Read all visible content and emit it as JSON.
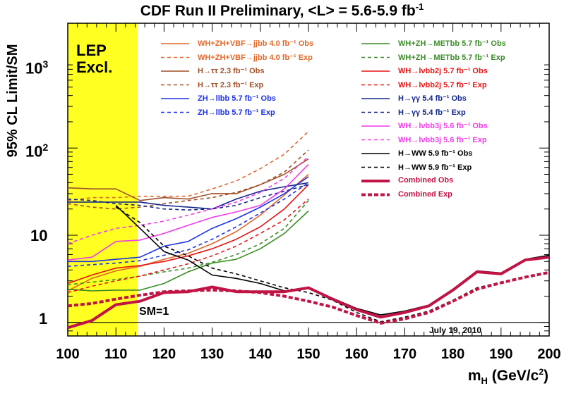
{
  "colors": {
    "lep_band": "#ffff22",
    "jjbb": "#e0682a",
    "tautau": "#a0502a",
    "zh": "#1e32e6",
    "metbb": "#3c8c28",
    "wh": "#e81414",
    "gg": "#14288c",
    "wh3j": "#f03ce6",
    "hww": "#000000",
    "comb": "#c01445"
  },
  "labels": {
    "lep_line1": "LEP",
    "lep_line2": "Excl.",
    "sm": "SM=1",
    "date": "July 19, 2010"
  },
  "chart_data": {
    "type": "line",
    "title": "CDF Run II Preliminary, <L> = 5.6-5.9 fb⁻¹",
    "xlabel": "m_H (GeV/c²)",
    "ylabel": "95% CL Limit/SM",
    "xlim": [
      100,
      200
    ],
    "ylim": [
      0.7,
      2700
    ],
    "log_y": true,
    "x_ticks": [
      "100",
      "110",
      "120",
      "130",
      "140",
      "150",
      "160",
      "170",
      "180",
      "190",
      "200"
    ],
    "y_ticks": [
      {
        "label": "1",
        "value": 1
      },
      {
        "label": "10",
        "value": 10
      },
      {
        "label": "10²",
        "value": 100
      },
      {
        "label": "10³",
        "value": 1000
      }
    ],
    "lep_excluded_below": 114.4,
    "sm_line": 1,
    "series": [
      {
        "name": "WH+ZH+VBF→jjbb 4.0 fb⁻¹ Obs",
        "key": "jjbb",
        "dashed": false,
        "x": [
          100,
          105,
          110,
          115,
          120,
          125,
          130,
          135,
          140,
          145,
          150
        ],
        "y": [
          2.3,
          3.2,
          3.9,
          4.4,
          5.3,
          6.2,
          8.0,
          11.0,
          17.0,
          29.0,
          50.0
        ]
      },
      {
        "name": "WH+ZH+VBF→jjbb 4.0 fb⁻¹ Exp",
        "key": "jjbb",
        "dashed": true,
        "x": [
          100,
          105,
          110,
          115,
          120,
          125,
          130,
          135,
          140,
          145,
          150
        ],
        "y": [
          25.0,
          27.0,
          27.0,
          28.0,
          28.0,
          28.0,
          34.0,
          42.0,
          58.0,
          85.0,
          155.0
        ]
      },
      {
        "name": "H→ττ 2.3 fb⁻¹ Obs",
        "key": "tautau",
        "dashed": false,
        "x": [
          100,
          105,
          110,
          115,
          120,
          125,
          130,
          135,
          140,
          145,
          150
        ],
        "y": [
          35.0,
          34.0,
          34.0,
          25.0,
          27.0,
          26.0,
          30.0,
          30.0,
          38.0,
          50.0,
          75.0
        ]
      },
      {
        "name": "H→ττ 2.3 fb⁻¹ Exp",
        "key": "tautau",
        "dashed": true,
        "x": [
          100,
          105,
          110,
          115,
          120,
          125,
          130,
          135,
          140,
          145,
          150
        ],
        "y": [
          23.0,
          21.0,
          20.0,
          21.0,
          23.0,
          25.0,
          27.0,
          31.0,
          38.0,
          53.0,
          95.0
        ]
      },
      {
        "name": "ZH→llbb 5.7 fb⁻¹ Obs",
        "key": "zh",
        "dashed": false,
        "x": [
          100,
          105,
          110,
          115,
          120,
          125,
          130,
          135,
          140,
          145,
          150
        ],
        "y": [
          5.0,
          5.0,
          5.3,
          5.6,
          7.5,
          8.5,
          12.0,
          15.5,
          21.0,
          30.0,
          47.0
        ]
      },
      {
        "name": "ZH→llbb 5.7 fb⁻¹ Exp",
        "key": "zh",
        "dashed": true,
        "x": [
          100,
          105,
          110,
          115,
          120,
          125,
          130,
          135,
          140,
          145,
          150
        ],
        "y": [
          4.4,
          4.6,
          4.8,
          5.1,
          5.9,
          6.8,
          9.0,
          12.5,
          18.0,
          26.0,
          40.0
        ]
      },
      {
        "name": "WH+ZH→METbb 5.7 fb⁻¹ Obs",
        "key": "metbb",
        "dashed": false,
        "x": [
          100,
          105,
          110,
          115,
          120,
          125,
          130,
          135,
          140,
          145,
          150
        ],
        "y": [
          2.4,
          2.3,
          2.35,
          2.35,
          2.8,
          3.8,
          4.8,
          5.3,
          7.0,
          10.5,
          19.0
        ]
      },
      {
        "name": "WH+ZH→METbb 5.7 fb⁻¹ Exp",
        "key": "metbb",
        "dashed": true,
        "x": [
          100,
          105,
          110,
          115,
          120,
          125,
          130,
          135,
          140,
          145,
          150
        ],
        "y": [
          2.7,
          2.9,
          3.1,
          3.4,
          3.8,
          4.2,
          4.9,
          6.0,
          8.0,
          12.0,
          25.0
        ]
      },
      {
        "name": "WH→lνbb2j 5.7 fb⁻¹ Obs",
        "key": "wh",
        "dashed": false,
        "x": [
          100,
          105,
          110,
          115,
          120,
          125,
          130,
          135,
          140,
          145,
          150
        ],
        "y": [
          2.8,
          3.5,
          4.2,
          4.5,
          5.0,
          5.8,
          7.0,
          9.0,
          12.5,
          20.0,
          38.0
        ]
      },
      {
        "name": "WH→lνbb2j 5.7 fb⁻¹ Exp",
        "key": "wh",
        "dashed": true,
        "x": [
          100,
          105,
          110,
          115,
          120,
          125,
          130,
          135,
          140,
          145,
          150
        ],
        "y": [
          2.2,
          2.6,
          3.0,
          3.4,
          4.0,
          4.7,
          5.8,
          7.5,
          10.5,
          15.0,
          26.0
        ]
      },
      {
        "name": "H→γγ 5.4 fb⁻¹ Obs",
        "key": "gg",
        "dashed": false,
        "x": [
          100,
          105,
          110,
          115,
          120,
          125,
          130,
          135,
          140,
          145,
          150
        ],
        "y": [
          24.0,
          24.0,
          24.0,
          24.0,
          22.0,
          21.0,
          20.0,
          26.0,
          32.0,
          36.0,
          40.0
        ]
      },
      {
        "name": "H→γγ 5.4 fb⁻¹ Exp",
        "key": "gg",
        "dashed": true,
        "x": [
          100,
          105,
          110,
          115,
          120,
          125,
          130,
          135,
          140,
          145,
          150
        ],
        "y": [
          26.0,
          25.0,
          23.0,
          22.0,
          20.0,
          19.5,
          20.0,
          22.0,
          27.0,
          32.0,
          38.0
        ]
      },
      {
        "name": "WH→lνbb3j 5.6 fb⁻¹ Obs",
        "key": "wh3j",
        "dashed": false,
        "x": [
          100,
          105,
          110,
          115,
          120,
          125,
          130,
          135,
          140,
          145,
          150
        ],
        "y": [
          5.2,
          5.6,
          8.5,
          8.8,
          10.5,
          13.0,
          16.0,
          18.5,
          22.0,
          34.0,
          65.0
        ]
      },
      {
        "name": "WH→lνbb3j 5.6 fb⁻¹ Exp",
        "key": "wh3j",
        "dashed": true,
        "x": [
          100,
          105,
          110,
          115,
          120,
          125,
          130,
          135,
          140,
          145,
          150
        ],
        "y": [
          8.0,
          10.0,
          12.0,
          13.0,
          14.5,
          17.0,
          20.0,
          24.0,
          31.0,
          45.0,
          80.0
        ]
      },
      {
        "name": "H→WW 5.9 fb⁻¹ Obs",
        "key": "hww",
        "dashed": false,
        "x": [
          110,
          115,
          120,
          125,
          130,
          135,
          140,
          145,
          150,
          155,
          160,
          165,
          170,
          175,
          180,
          185,
          190,
          195,
          200
        ],
        "y": [
          22.0,
          12.0,
          6.5,
          5.2,
          3.5,
          3.2,
          2.8,
          2.3,
          2.5,
          1.9,
          1.45,
          1.22,
          1.35,
          1.58,
          2.4,
          3.9,
          3.7,
          5.3,
          5.9
        ]
      },
      {
        "name": "H→WW 5.9 fb⁻¹ Exp",
        "key": "hww",
        "dashed": true,
        "x": [
          110,
          115,
          120,
          125,
          130,
          135,
          140,
          145,
          150,
          155,
          160,
          165,
          170,
          175,
          180,
          185,
          190,
          195,
          200
        ],
        "y": [
          21.0,
          14.0,
          7.5,
          5.8,
          4.2,
          3.6,
          3.0,
          2.5,
          2.2,
          1.8,
          1.3,
          1.02,
          1.15,
          1.35,
          1.8,
          2.5,
          2.9,
          3.3,
          3.7
        ]
      },
      {
        "name": "Combined Obs",
        "key": "comb",
        "dashed": false,
        "thick": true,
        "x": [
          100,
          105,
          110,
          115,
          120,
          125,
          130,
          135,
          140,
          145,
          150,
          155,
          160,
          165,
          170,
          175,
          180,
          185,
          190,
          195,
          200
        ],
        "y": [
          0.87,
          1.05,
          1.6,
          1.75,
          2.2,
          2.25,
          2.55,
          2.25,
          2.25,
          2.25,
          2.5,
          1.85,
          1.4,
          1.15,
          1.3,
          1.55,
          2.35,
          3.8,
          3.6,
          5.2,
          5.6
        ]
      },
      {
        "name": "Combined Exp",
        "key": "comb",
        "dashed": true,
        "thick": true,
        "x": [
          100,
          105,
          110,
          115,
          120,
          125,
          130,
          135,
          140,
          145,
          150,
          155,
          160,
          165,
          170,
          175,
          180,
          185,
          190,
          195,
          200
        ],
        "y": [
          1.55,
          1.65,
          1.85,
          2.05,
          2.25,
          2.3,
          2.35,
          2.3,
          2.2,
          2.0,
          1.75,
          1.5,
          1.2,
          0.98,
          1.1,
          1.3,
          1.75,
          2.4,
          2.85,
          3.3,
          3.75
        ]
      }
    ]
  }
}
